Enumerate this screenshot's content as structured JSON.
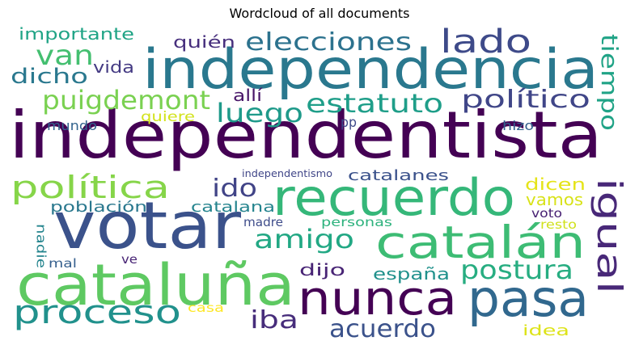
{
  "chart_data": {
    "type": "wordcloud",
    "title": "Wordcloud of all documents",
    "words": [
      {
        "text": "independentista",
        "color": "#440154"
      },
      {
        "text": "independencia",
        "color": "#2a788e"
      },
      {
        "text": "votar",
        "color": "#3b528b"
      },
      {
        "text": "cataluña",
        "color": "#5ec962"
      },
      {
        "text": "recuerdo",
        "color": "#35b779"
      },
      {
        "text": "pasa",
        "color": "#31688e"
      },
      {
        "text": "nunca",
        "color": "#440154"
      },
      {
        "text": "catalán",
        "color": "#3dbc74"
      },
      {
        "text": "proceso",
        "color": "#21918c"
      },
      {
        "text": "lado",
        "color": "#3e4a89"
      },
      {
        "text": "igual",
        "color": "#482878"
      },
      {
        "text": "van",
        "color": "#44bf70"
      },
      {
        "text": "elecciones",
        "color": "#2c728e"
      },
      {
        "text": "puigdemont",
        "color": "#7ad151"
      },
      {
        "text": "política",
        "color": "#86d549"
      },
      {
        "text": "amigo",
        "color": "#22a884"
      },
      {
        "text": "estatuto",
        "color": "#1f9e89"
      },
      {
        "text": "postura",
        "color": "#27ad81"
      },
      {
        "text": "luego",
        "color": "#1f9a8a"
      },
      {
        "text": "político",
        "color": "#404688"
      },
      {
        "text": "tiempo",
        "color": "#20a386"
      },
      {
        "text": "acuerdo",
        "color": "#3b528b"
      },
      {
        "text": "iba",
        "color": "#472d7b"
      },
      {
        "text": "dicho",
        "color": "#2a788e"
      },
      {
        "text": "ido",
        "color": "#414487"
      },
      {
        "text": "importante",
        "color": "#20a486"
      },
      {
        "text": "quién",
        "color": "#472f7d"
      },
      {
        "text": "dijo",
        "color": "#482475"
      },
      {
        "text": "españa",
        "color": "#21918c"
      },
      {
        "text": "vida",
        "color": "#443a83"
      },
      {
        "text": "allí",
        "color": "#481668"
      },
      {
        "text": "dicen",
        "color": "#e5e419"
      },
      {
        "text": "vamos",
        "color": "#d8e219"
      },
      {
        "text": "catalanes",
        "color": "#3b528b"
      },
      {
        "text": "catalana",
        "color": "#25848e"
      },
      {
        "text": "población",
        "color": "#2a788e"
      },
      {
        "text": "quiere",
        "color": "#d2e21b"
      },
      {
        "text": "mundo",
        "color": "#33638d"
      },
      {
        "text": "pp",
        "color": "#3e4989"
      },
      {
        "text": "hizo",
        "color": "#34618d"
      },
      {
        "text": "idea",
        "color": "#dde318"
      },
      {
        "text": "nadie",
        "color": "#25858e"
      },
      {
        "text": "madre",
        "color": "#3e4c8a"
      },
      {
        "text": "personas",
        "color": "#2db27d"
      },
      {
        "text": "voto",
        "color": "#482173"
      },
      {
        "text": "resto",
        "color": "#d0e11c"
      },
      {
        "text": "mal",
        "color": "#355f8d"
      },
      {
        "text": "ve",
        "color": "#482475"
      },
      {
        "text": "casa",
        "color": "#fde725"
      },
      {
        "text": "independentismo",
        "color": "#404688"
      }
    ]
  }
}
